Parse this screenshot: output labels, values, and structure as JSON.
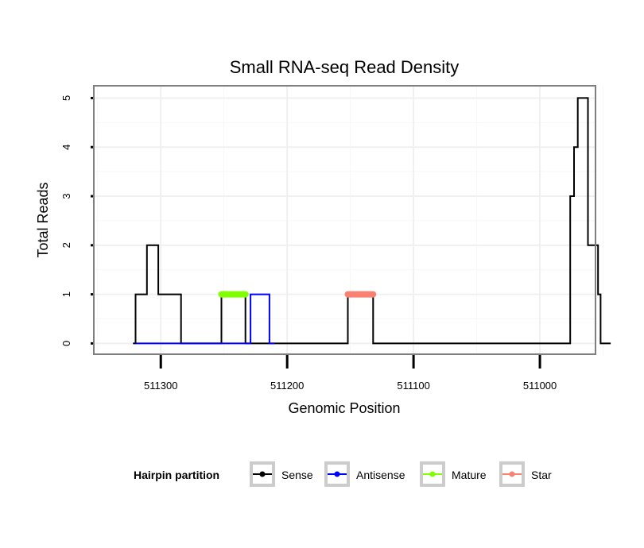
{
  "chart_data": {
    "type": "line",
    "title": "Small RNA-seq Read Density",
    "xlabel": "Genomic Position",
    "ylabel": "Total Reads",
    "xlim": [
      511353,
      510956
    ],
    "ylim": [
      -0.22,
      5.25
    ],
    "x_reversed": true,
    "x_ticks": [
      511300,
      511200,
      511100,
      511000
    ],
    "x_tick_labels": [
      "511300",
      "511200",
      "511100",
      "511000"
    ],
    "y_ticks": [
      0,
      1,
      2,
      3,
      4,
      5
    ],
    "y_tick_labels": [
      "0",
      "1",
      "2",
      "3",
      "4",
      "5"
    ],
    "grid": true,
    "legend": {
      "title": "Hairpin partition",
      "position": "bottom",
      "entries": [
        {
          "name": "Sense",
          "color": "#000000"
        },
        {
          "name": "Antisense",
          "color": "#0000ff"
        },
        {
          "name": "Mature",
          "color": "#7fff00"
        },
        {
          "name": "Star",
          "color": "#fa8072"
        }
      ]
    },
    "series": [
      {
        "name": "Sense",
        "color": "#000000",
        "x": [
          511322,
          511320,
          511320,
          511311,
          511311,
          511302,
          511302,
          511284,
          511284,
          511252,
          511252,
          511233,
          511233,
          511152,
          511152,
          511132,
          511132,
          510976,
          510976,
          510973,
          510973,
          510970,
          510970,
          510962,
          510962,
          510954,
          510954,
          510952,
          510952,
          510944
        ],
        "y": [
          0,
          0,
          1,
          1,
          2,
          2,
          1,
          1,
          0,
          0,
          1,
          1,
          0,
          0,
          1,
          1,
          0,
          0,
          3,
          3,
          4,
          4,
          5,
          5,
          2,
          2,
          1,
          1,
          0,
          0
        ]
      },
      {
        "name": "Antisense",
        "color": "#0000ff",
        "x": [
          511320,
          511229,
          511229,
          511214,
          511214,
          511210
        ],
        "y": [
          0,
          0,
          1,
          1,
          0,
          0
        ]
      },
      {
        "name": "Mature",
        "color": "#7fff00",
        "x": [
          511252,
          511233
        ],
        "y": [
          1,
          1
        ]
      },
      {
        "name": "Star",
        "color": "#fa8072",
        "x": [
          511152,
          511132
        ],
        "y": [
          1,
          1
        ]
      }
    ]
  }
}
